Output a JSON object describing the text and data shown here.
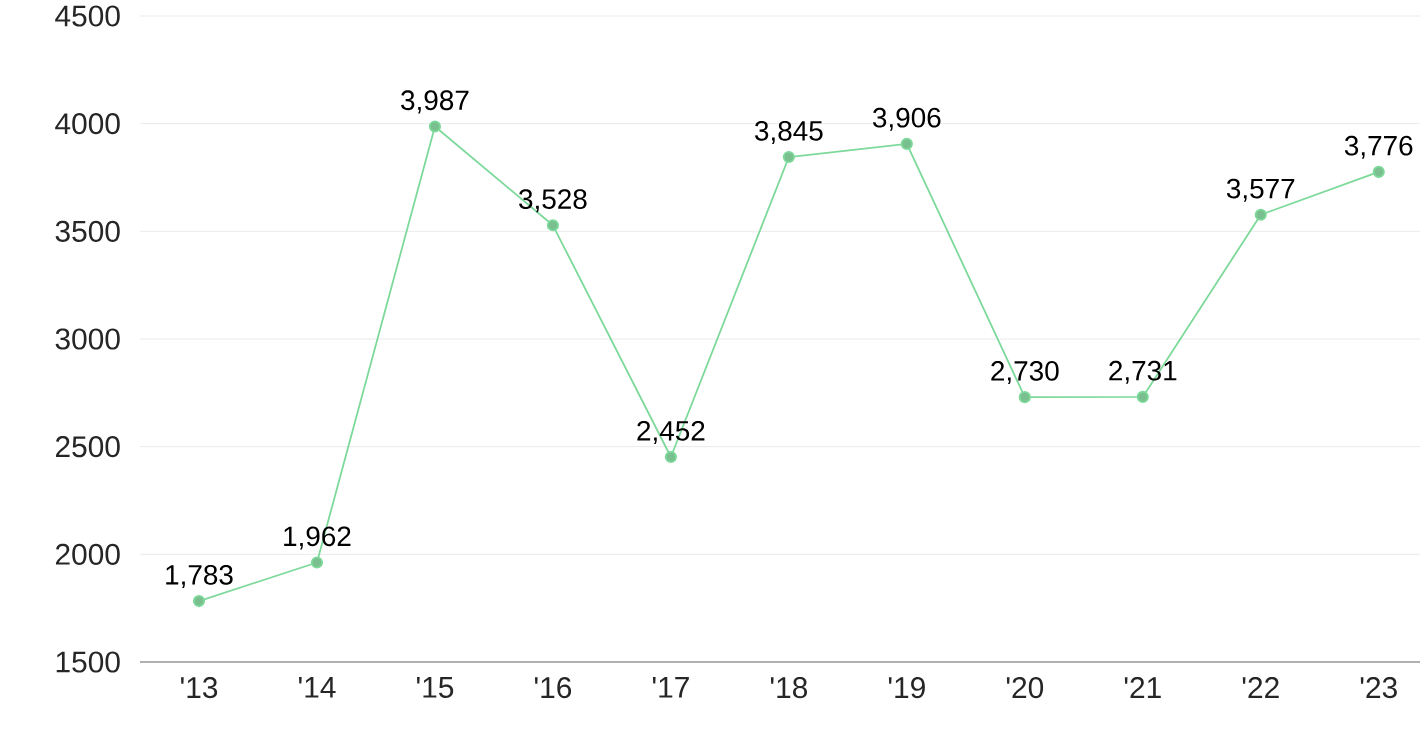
{
  "chart_data": {
    "type": "line",
    "categories": [
      "'13",
      "'14",
      "'15",
      "'16",
      "'17",
      "'18",
      "'19",
      "'20",
      "'21",
      "'22",
      "'23"
    ],
    "values": [
      1783,
      1962,
      3987,
      3528,
      2452,
      3845,
      3906,
      2730,
      2731,
      3577,
      3776
    ],
    "value_labels": [
      "1,783",
      "1,962",
      "3,987",
      "3,528",
      "2,452",
      "3,845",
      "3,906",
      "2,730",
      "2,731",
      "3,577",
      "3,776"
    ],
    "color": "#7dd99a",
    "marker": "circle",
    "line_style": "solid",
    "grid": "y",
    "ylim": [
      1500,
      4500
    ],
    "yticks": [
      1500,
      2000,
      2500,
      3000,
      3500,
      4000,
      4500
    ]
  }
}
